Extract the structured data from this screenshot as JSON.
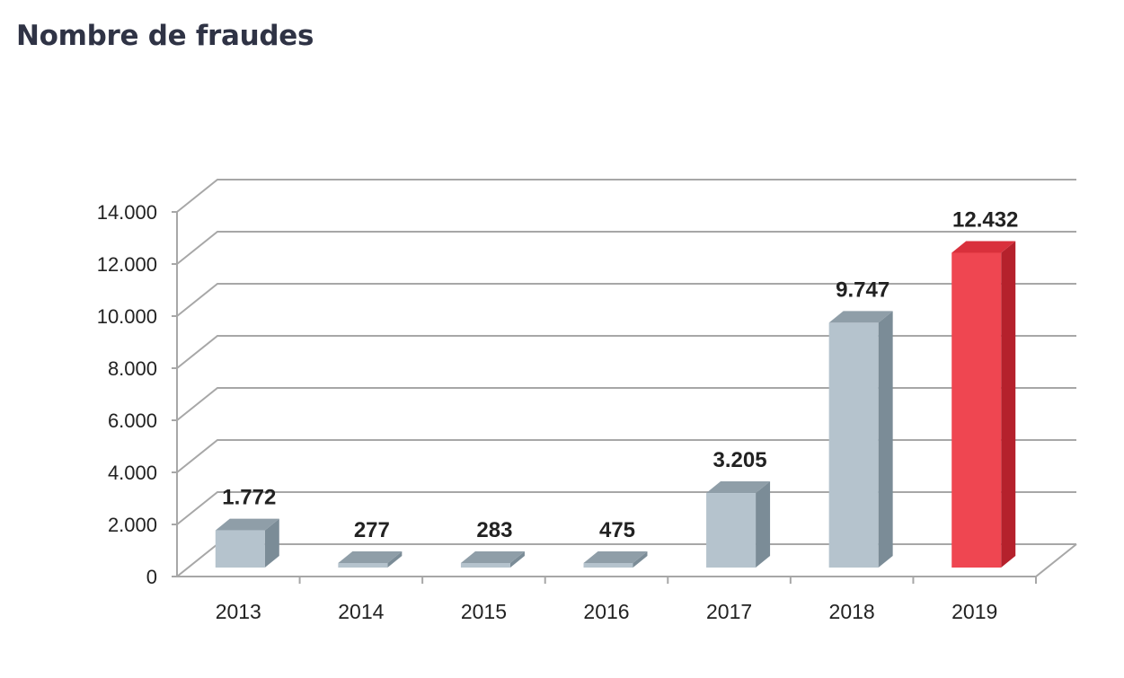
{
  "page": {
    "title": "Nombre de fraudes"
  },
  "chart_data": {
    "type": "bar",
    "title": "",
    "xlabel": "",
    "ylabel": "",
    "categories": [
      "2013",
      "2014",
      "2015",
      "2016",
      "2017",
      "2018",
      "2019"
    ],
    "values": [
      1772,
      277,
      283,
      475,
      3205,
      9747,
      12432
    ],
    "value_labels": [
      "1.772",
      "277",
      "283",
      "475",
      "3.205",
      "9.747",
      "12.432"
    ],
    "ylim": [
      0,
      14000
    ],
    "y_ticks": [
      0,
      2000,
      4000,
      6000,
      8000,
      10000,
      12000,
      14000
    ],
    "y_tick_labels": [
      "0",
      "2.000",
      "4.000",
      "6.000",
      "8.000",
      "10.000",
      "12.000",
      "14.000"
    ],
    "grid": true,
    "legend": "none",
    "three_d": true,
    "colors": {
      "default_bar": "#b5c3cd",
      "default_bar_side": "#7b8c97",
      "default_bar_top": "#8f9ea8",
      "highlight_bar": "#ef4651",
      "highlight_bar_side": "#b5212c",
      "highlight_bar_top": "#d9303c",
      "grid": "#a7a7a7",
      "text": "#222222"
    },
    "highlight_index": 6
  }
}
